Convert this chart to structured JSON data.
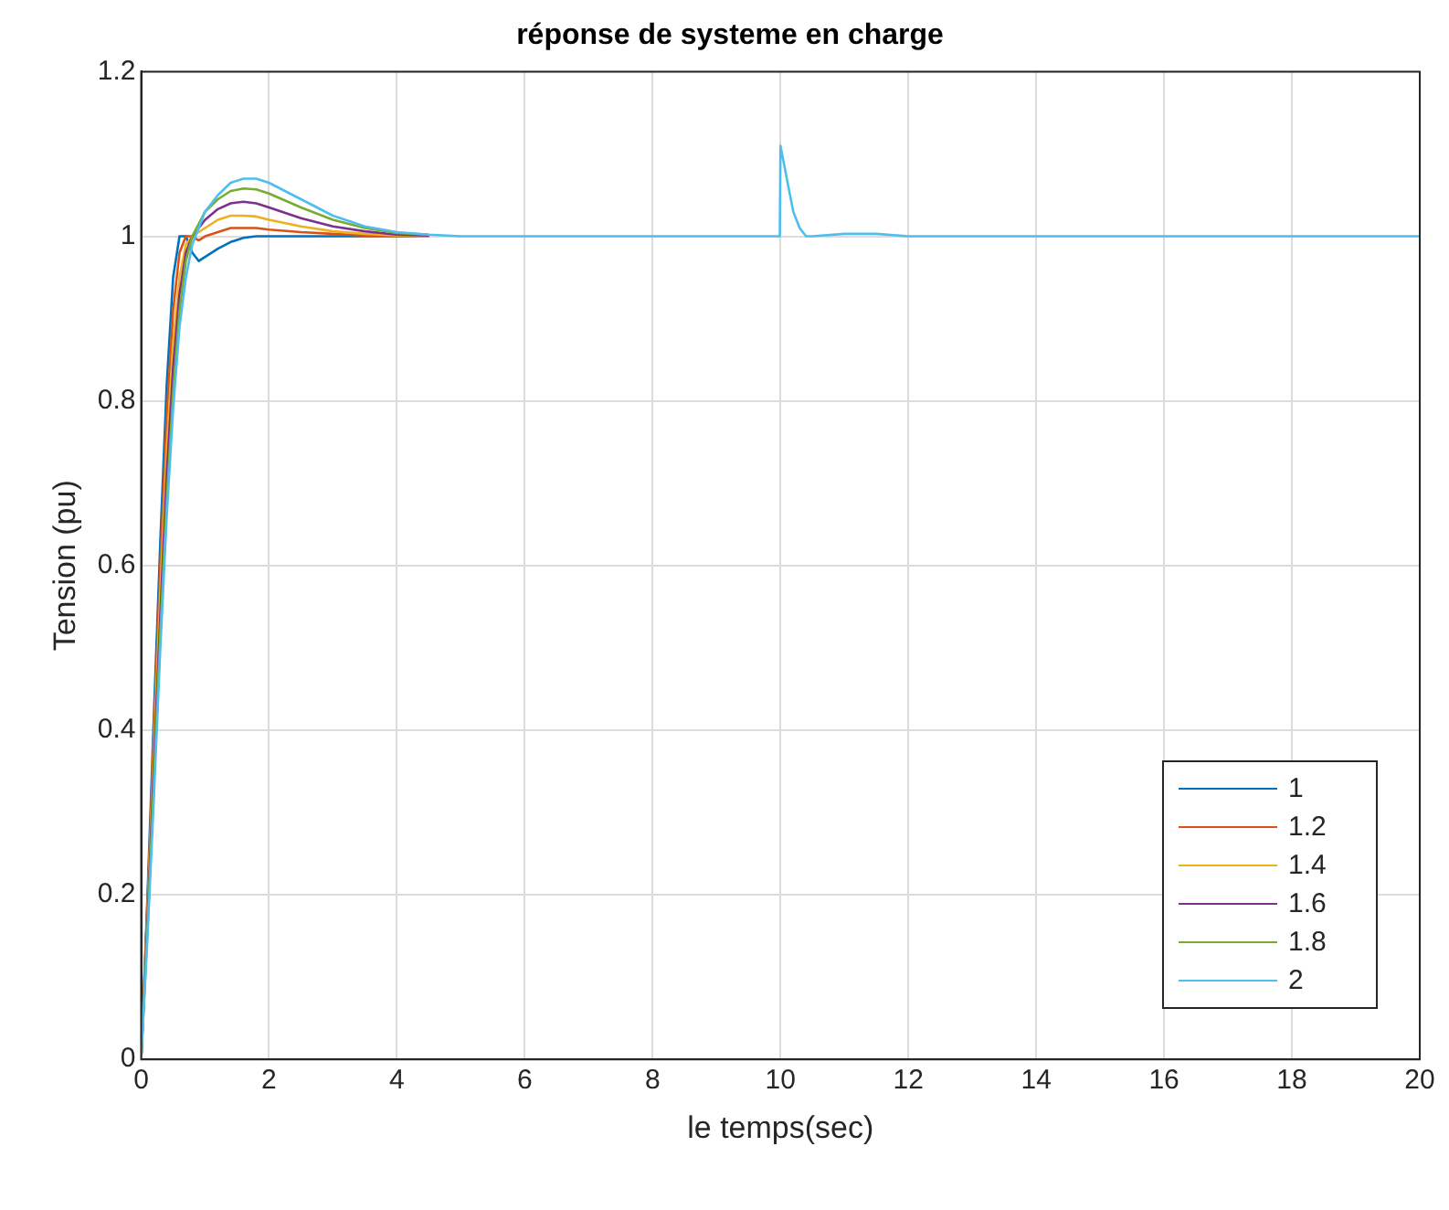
{
  "chart_data": {
    "type": "line",
    "title": "réponse de systeme en charge",
    "xlabel": "le temps(sec)",
    "ylabel": "Tension (pu)",
    "x": [
      0,
      0.1,
      0.2,
      0.3,
      0.4,
      0.5,
      0.6,
      0.7,
      0.8,
      0.9,
      1.0,
      1.2,
      1.4,
      1.6,
      1.8,
      2.0,
      2.5,
      3.0,
      3.5,
      4.0,
      4.5,
      5.0,
      6.0,
      8.0,
      9.99,
      10.0,
      10.1,
      10.2,
      10.3,
      10.4,
      10.5,
      11,
      11.5,
      12,
      14,
      20
    ],
    "series": [
      {
        "name": "1",
        "color": "#0072bd",
        "values": [
          0,
          0.2,
          0.42,
          0.63,
          0.82,
          0.95,
          1.0,
          1.0,
          0.98,
          0.97,
          0.975,
          0.985,
          0.993,
          0.998,
          1.0,
          1.0,
          1.0,
          1.0,
          1.0,
          1.0,
          1.0,
          null,
          null,
          null,
          null,
          null,
          null,
          null,
          null,
          null,
          null,
          null,
          null,
          null,
          null,
          null
        ]
      },
      {
        "name": "1.2",
        "color": "#d95319",
        "values": [
          0,
          0.19,
          0.4,
          0.6,
          0.78,
          0.91,
          0.98,
          1.0,
          1.0,
          0.995,
          1.0,
          1.005,
          1.01,
          1.01,
          1.01,
          1.008,
          1.005,
          1.003,
          1.001,
          1.0,
          1.0,
          null,
          null,
          null,
          null,
          null,
          null,
          null,
          null,
          null,
          null,
          null,
          null,
          null,
          null,
          null
        ]
      },
      {
        "name": "1.4",
        "color": "#edb120",
        "values": [
          0,
          0.18,
          0.38,
          0.57,
          0.74,
          0.87,
          0.95,
          0.99,
          1.0,
          1.005,
          1.01,
          1.02,
          1.025,
          1.025,
          1.024,
          1.02,
          1.012,
          1.006,
          1.003,
          1.001,
          1.0,
          null,
          null,
          null,
          null,
          null,
          null,
          null,
          null,
          null,
          null,
          null,
          null,
          null,
          null,
          null
        ]
      },
      {
        "name": "1.6",
        "color": "#7e2f8e",
        "values": [
          0,
          0.17,
          0.36,
          0.54,
          0.71,
          0.84,
          0.93,
          0.98,
          1.0,
          1.01,
          1.02,
          1.033,
          1.04,
          1.042,
          1.04,
          1.035,
          1.022,
          1.012,
          1.006,
          1.002,
          1.001,
          null,
          null,
          null,
          null,
          null,
          null,
          null,
          null,
          null,
          null,
          null,
          null,
          null,
          null,
          null
        ]
      },
      {
        "name": "1.8",
        "color": "#77ac30",
        "values": [
          0,
          0.16,
          0.34,
          0.52,
          0.68,
          0.81,
          0.91,
          0.97,
          1.0,
          1.015,
          1.03,
          1.045,
          1.055,
          1.058,
          1.057,
          1.052,
          1.035,
          1.02,
          1.01,
          1.004,
          1.002,
          null,
          null,
          null,
          null,
          null,
          null,
          null,
          null,
          null,
          null,
          null,
          null,
          null,
          null,
          null
        ]
      },
      {
        "name": "2",
        "color": "#4dbeee",
        "values": [
          0,
          0.15,
          0.32,
          0.5,
          0.66,
          0.79,
          0.89,
          0.95,
          0.99,
          1.01,
          1.03,
          1.05,
          1.065,
          1.07,
          1.07,
          1.065,
          1.045,
          1.025,
          1.012,
          1.005,
          1.002,
          1.0,
          1.0,
          1.0,
          1.0,
          1.11,
          1.07,
          1.03,
          1.01,
          1.0,
          1.0,
          1.003,
          1.003,
          1.0,
          1.0,
          1.0
        ]
      }
    ],
    "xlim": [
      0,
      20
    ],
    "xticks": [
      0,
      2,
      4,
      6,
      8,
      10,
      12,
      14,
      16,
      18,
      20
    ],
    "ylim": [
      0,
      1.2
    ],
    "yticks": [
      0,
      0.2,
      0.4,
      0.6,
      0.8,
      1,
      1.2
    ],
    "grid": true,
    "legend": "bottom right",
    "marker": "none",
    "line_style": "solid"
  }
}
